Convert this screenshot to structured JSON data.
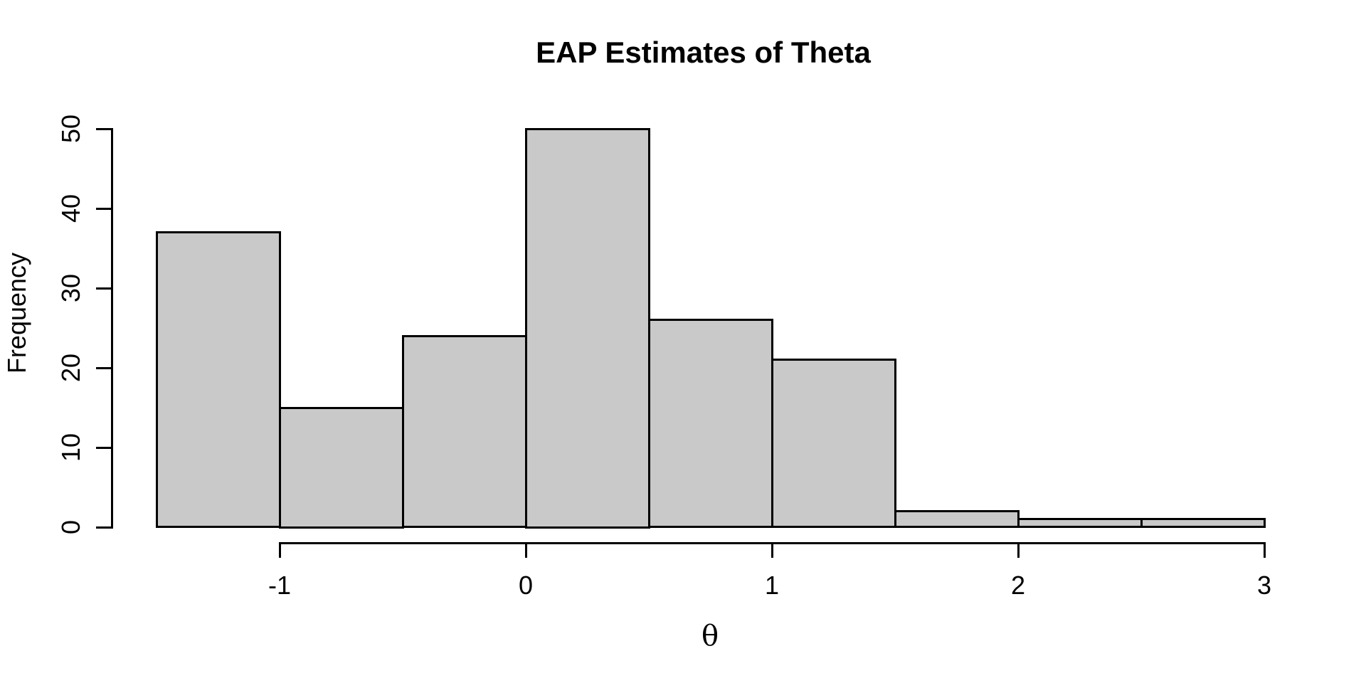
{
  "chart_data": {
    "type": "bar",
    "subtype": "histogram",
    "title": "EAP Estimates of Theta",
    "xlabel": "θ",
    "ylabel": "Frequency",
    "bin_edges": [
      -1.5,
      -1.0,
      -0.5,
      0.0,
      0.5,
      1.0,
      1.5,
      2.0,
      2.5,
      3.0
    ],
    "counts": [
      37,
      15,
      24,
      50,
      26,
      21,
      2,
      1,
      1
    ],
    "x_ticks": [
      -1,
      0,
      1,
      2,
      3
    ],
    "x_tick_labels": [
      "-1",
      "0",
      "1",
      "2",
      "3"
    ],
    "y_ticks": [
      0,
      10,
      20,
      30,
      40,
      50
    ],
    "y_tick_labels": [
      "0",
      "10",
      "20",
      "30",
      "40",
      "50"
    ],
    "xlim": [
      -1.5,
      3.0
    ],
    "ylim": [
      0,
      50
    ],
    "grid": false,
    "legend": null,
    "bar_fill": "#C9C9C9",
    "bar_border": "#000000",
    "axis_color": "#000000",
    "background": "#FFFFFF"
  }
}
